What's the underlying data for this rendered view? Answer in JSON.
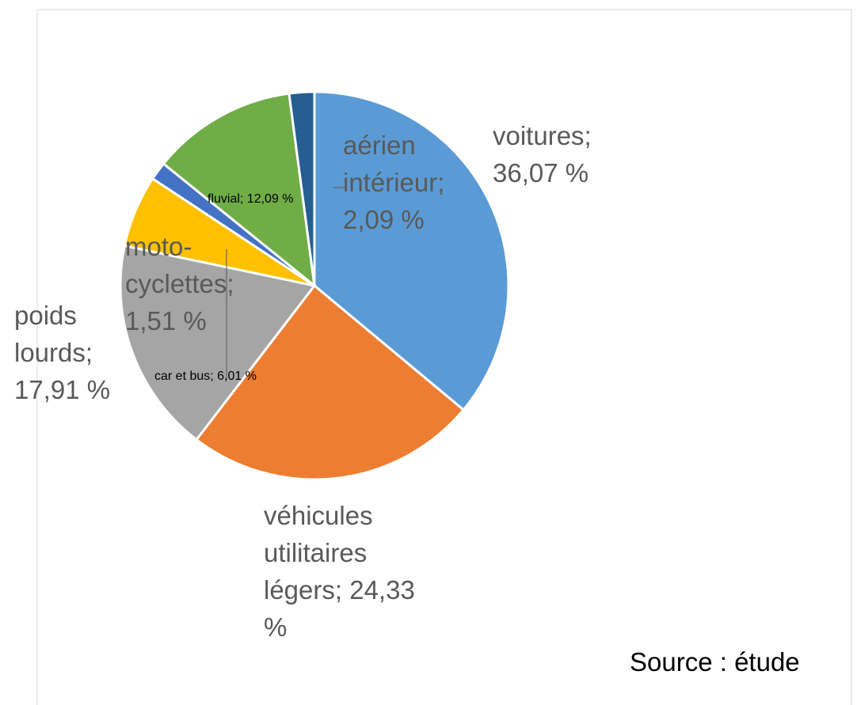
{
  "chart_data": {
    "type": "pie",
    "values": [
      36.07,
      24.33,
      17.91,
      6.01,
      1.51,
      12.09,
      2.09
    ],
    "value_labels": [
      "voitures; 36,07 %",
      "véhicules utilitaires légers; 24,33 %",
      "poids lourds; 17,91 %",
      "car et bus; 6,01 %",
      "moto-cyclettes; 1,51 %",
      "fluvial; 12,09 %",
      "aérien intérieur; 2,09 %"
    ],
    "colors": [
      "#5b9bd5",
      "#ed7d31",
      "#a5a5a5",
      "#ffc000",
      "#4472c4",
      "#70ad47",
      "#255e91"
    ],
    "source": "Source : étude"
  }
}
